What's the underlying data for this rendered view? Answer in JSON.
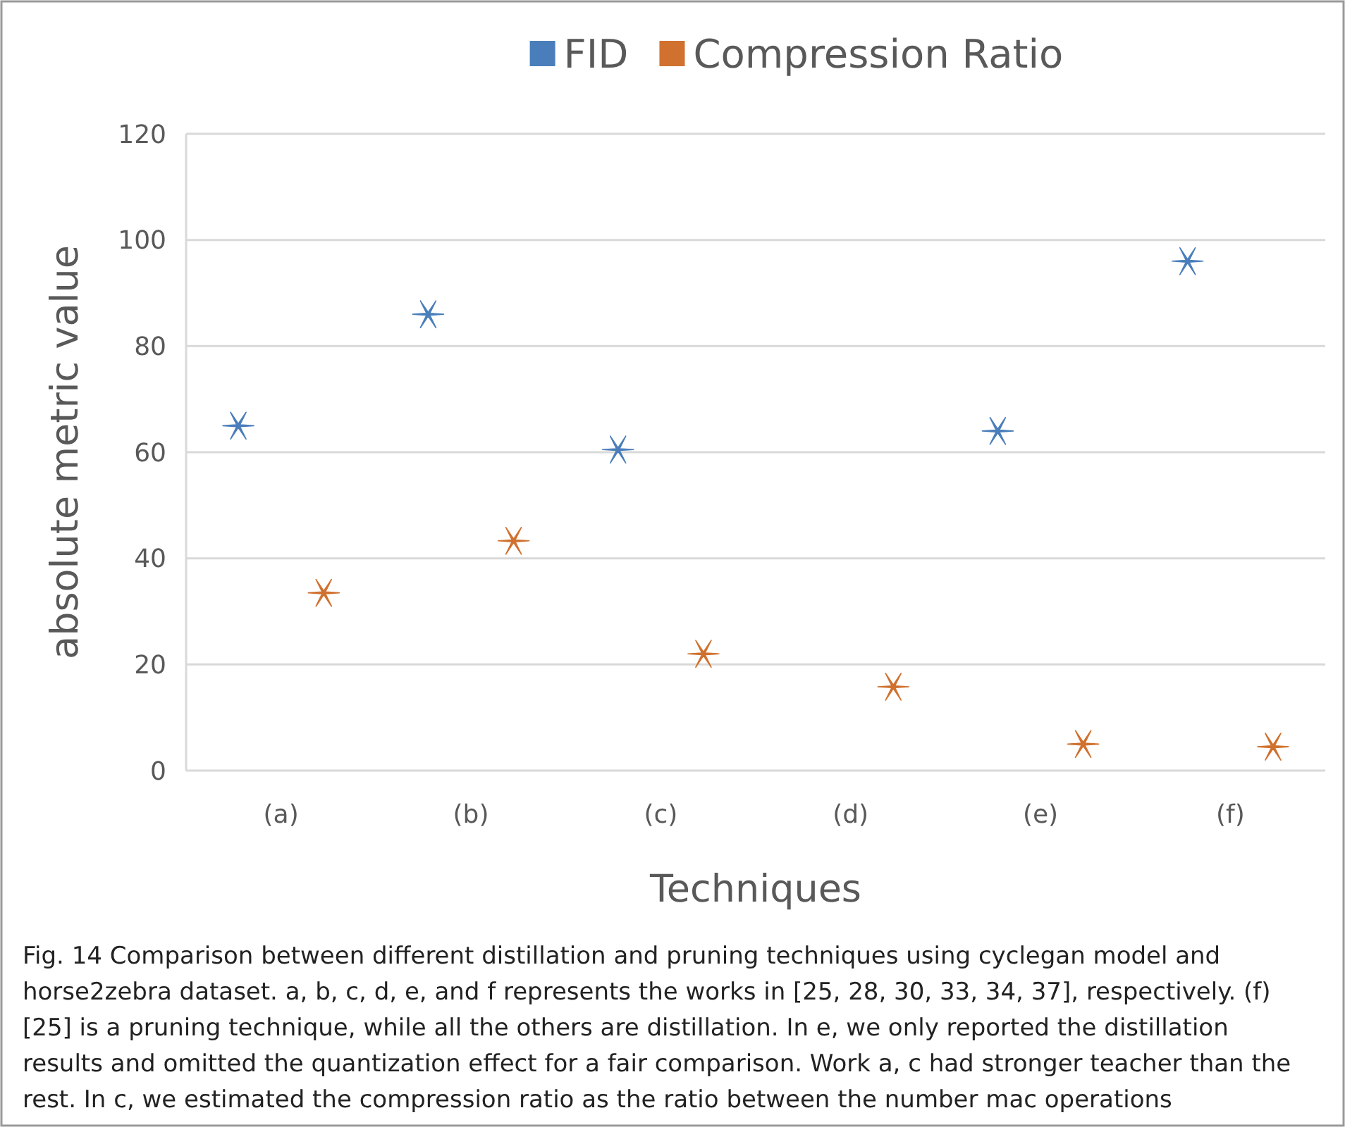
{
  "chart_data": {
    "type": "scatter",
    "xlabel": "Techniques",
    "ylabel": "absolute metric value",
    "categories": [
      "(a)",
      "(b)",
      "(c)",
      "(d)",
      "(e)",
      "(f)"
    ],
    "series": [
      {
        "name": "FID",
        "color": "#4a7ebb",
        "values": [
          65,
          86,
          60.5,
          null,
          64,
          96
        ]
      },
      {
        "name": "Compression Ratio",
        "color": "#d0712f",
        "values": [
          33.5,
          43.3,
          22,
          15.8,
          5,
          4.5
        ]
      }
    ],
    "ylim": [
      0,
      120
    ],
    "yticks": [
      0,
      20,
      40,
      60,
      80,
      100,
      120
    ],
    "grid": "y",
    "legend": "top",
    "marker": "cross",
    "annotations": [
      "Fig. 14  Comparison between different distillation and pruning techniques using cyclegan model and horse2zebra dataset. a, b, c, d, e, and f represents the works in [25, 28, 30, 33, 34, 37], respectively. (f) [25] is a pruning technique, while all the others are distillation. In e, we only reported the distillation results and omitted the quantization effect for a fair comparison. Work a, c had stronger teacher than the rest. In c, we estimated the compression ratio as the ratio between the number mac operations"
    ]
  }
}
